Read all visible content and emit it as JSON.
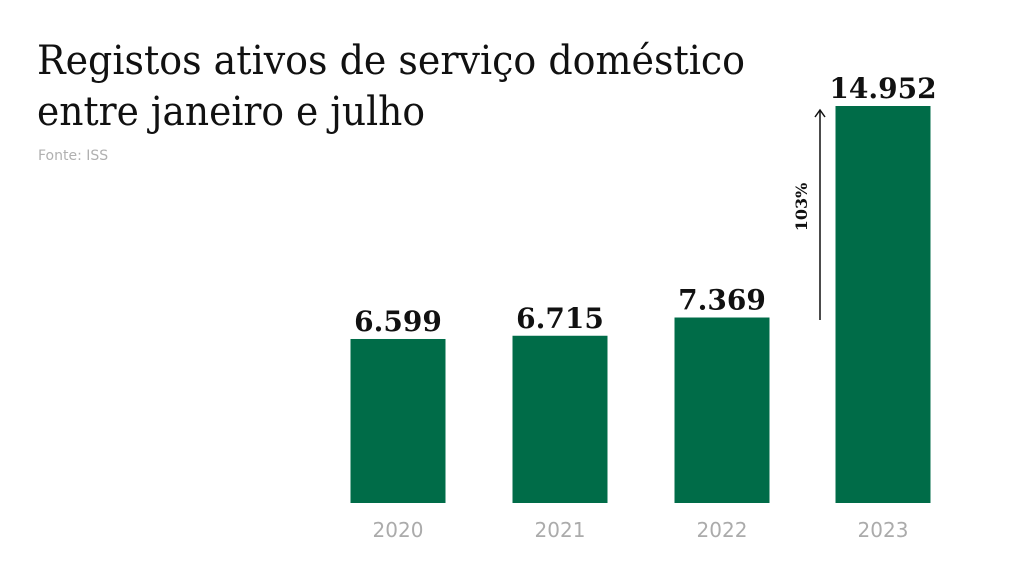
{
  "chart_data": {
    "type": "bar",
    "title": [
      "Registos ativos de serviço doméstico",
      "entre janeiro e julho"
    ],
    "source": "Fonte: ISS",
    "categories": [
      "2020",
      "2021",
      "2022",
      "2023"
    ],
    "values": [
      6599,
      6715,
      7369,
      14952
    ],
    "value_labels": [
      "6.599",
      "6.715",
      "7.369",
      "14.952"
    ],
    "annotation": "103%",
    "xlabel": "",
    "ylabel": "",
    "ylim": [
      719,
      14952
    ],
    "grid": false,
    "bar_color": "#006c48"
  }
}
